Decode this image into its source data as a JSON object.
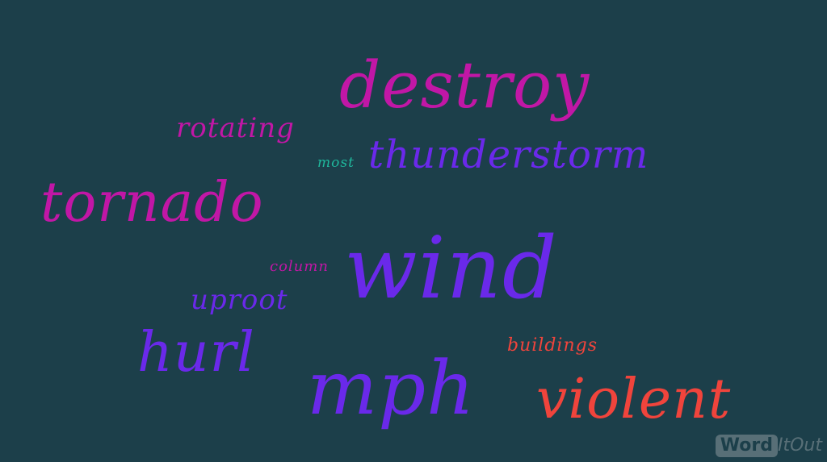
{
  "background_color": "#1c3f4a",
  "words": [
    {
      "text": "destroy",
      "color": "#c117a6"
    },
    {
      "text": "rotating",
      "color": "#c117a6"
    },
    {
      "text": "most",
      "color": "#1fb79c"
    },
    {
      "text": "thunderstorm",
      "color": "#6a29ea"
    },
    {
      "text": "tornado",
      "color": "#c117a6"
    },
    {
      "text": "column",
      "color": "#c117a6"
    },
    {
      "text": "wind",
      "color": "#6a29ea"
    },
    {
      "text": "uproot",
      "color": "#6a29ea"
    },
    {
      "text": "hurl",
      "color": "#6a29ea"
    },
    {
      "text": "buildings",
      "color": "#f0443c"
    },
    {
      "text": "mph",
      "color": "#6a29ea"
    },
    {
      "text": "violent",
      "color": "#f0443c"
    }
  ],
  "watermark": {
    "part1": "Word",
    "part2": "ItOut"
  }
}
